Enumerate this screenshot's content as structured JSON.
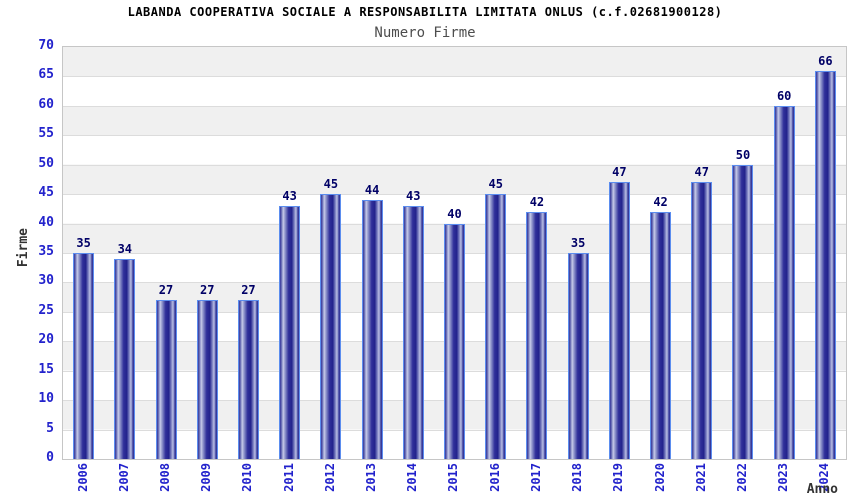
{
  "header": {
    "title": "LABANDA COOPERATIVA SOCIALE A RESPONSABILITA LIMITATA ONLUS (c.f.02681900128)",
    "subtitle": "Numero Firme"
  },
  "chart_data": {
    "type": "bar",
    "title": "LABANDA COOPERATIVA SOCIALE A RESPONSABILITA LIMITATA ONLUS (c.f.02681900128)",
    "subtitle": "Numero Firme",
    "xlabel": "Anno",
    "ylabel": "Firme",
    "categories": [
      "2006",
      "2007",
      "2008",
      "2009",
      "2010",
      "2011",
      "2012",
      "2013",
      "2014",
      "2015",
      "2016",
      "2017",
      "2018",
      "2019",
      "2020",
      "2021",
      "2022",
      "2023",
      "2024"
    ],
    "values": [
      35,
      34,
      27,
      27,
      27,
      43,
      45,
      44,
      43,
      40,
      45,
      42,
      35,
      47,
      42,
      47,
      50,
      60,
      66
    ],
    "ylim": [
      0,
      70
    ],
    "ytick_step": 5,
    "grid": true,
    "value_labels_shown": true,
    "legend": null,
    "colors": {
      "bar_fill_dark": "#23238c",
      "bar_highlight": "#c6cae8",
      "bar_border": "#5b8def",
      "value_label": "#000066",
      "axis_tick_label": "#2222cc",
      "band_gray": "#f0f0f0",
      "band_white": "#ffffff",
      "grid_line": "#dcdcdc",
      "plot_border": "#c6c6c6",
      "title_text": "#000000",
      "subtitle_text": "#4d4d4d",
      "axis_name_text": "#333333"
    }
  }
}
